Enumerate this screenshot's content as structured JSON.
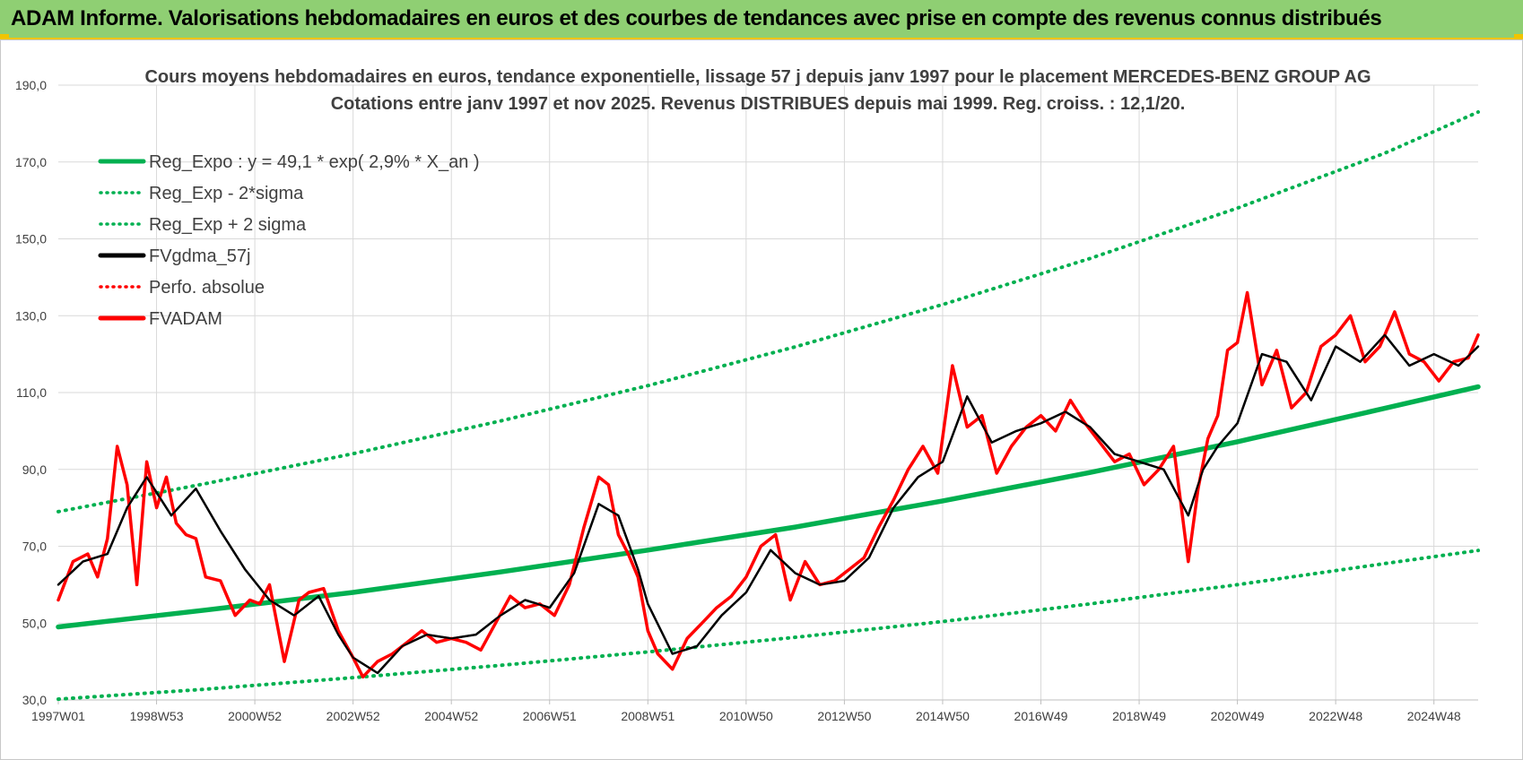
{
  "banner": {
    "title": "ADAM Informe. Valorisations hebdomadaires en euros et des courbes de tendances avec prise en compte des revenus connus distribués",
    "bg_color": "#8fcf73"
  },
  "chart_data": {
    "type": "line",
    "title": "Cours moyens hebdomadaires en euros, tendance exponentielle, lissage 57 j depuis janv 1997 pour le placement MERCEDES-BENZ GROUP AG",
    "subtitle": "Cotations entre janv 1997 et nov 2025. Revenus DISTRIBUES depuis mai 1999. Reg. croiss. : 12,1/20.",
    "xlabel": "",
    "ylabel": "",
    "xlim": [
      1997.0,
      2025.9
    ],
    "ylim": [
      30,
      190
    ],
    "y_ticks": [
      "30,0",
      "50,0",
      "70,0",
      "90,0",
      "110,0",
      "130,0",
      "150,0",
      "170,0",
      "190,0"
    ],
    "x_ticks": [
      {
        "label": "1997W01",
        "x": 1997.0
      },
      {
        "label": "1998W53",
        "x": 1999.0
      },
      {
        "label": "2000W52",
        "x": 2001.0
      },
      {
        "label": "2002W52",
        "x": 2003.0
      },
      {
        "label": "2004W52",
        "x": 2005.0
      },
      {
        "label": "2006W51",
        "x": 2007.0
      },
      {
        "label": "2008W51",
        "x": 2009.0
      },
      {
        "label": "2010W50",
        "x": 2011.0
      },
      {
        "label": "2012W50",
        "x": 2013.0
      },
      {
        "label": "2014W50",
        "x": 2015.0
      },
      {
        "label": "2016W49",
        "x": 2017.0
      },
      {
        "label": "2018W49",
        "x": 2019.0
      },
      {
        "label": "2020W49",
        "x": 2021.0
      },
      {
        "label": "2022W48",
        "x": 2023.0
      },
      {
        "label": "2024W48",
        "x": 2025.0
      }
    ],
    "grid": true,
    "legend_position": "top-left",
    "series": [
      {
        "name": "Reg_Expo : y = 49,1 * exp( 2,9% *  X_an )",
        "color": "#00b050",
        "style": "solid",
        "x": [
          1997,
          2000,
          2003,
          2006,
          2009,
          2012,
          2015,
          2018,
          2021,
          2024,
          2025.9
        ],
        "values": [
          49.0,
          53.4,
          58.0,
          63.3,
          69.0,
          75.0,
          81.8,
          89.2,
          97.2,
          105.9,
          111.5
        ]
      },
      {
        "name": "Reg_Exp - 2*sigma",
        "color": "#00b050",
        "style": "dotted",
        "x": [
          1997,
          2000,
          2003,
          2006,
          2009,
          2012,
          2015,
          2018,
          2021,
          2024,
          2025.9
        ],
        "values": [
          30.2,
          32.8,
          35.8,
          39.0,
          42.5,
          46.3,
          50.4,
          55.0,
          60.0,
          65.5,
          68.9
        ]
      },
      {
        "name": "Reg_Exp + 2 sigma",
        "color": "#00b050",
        "style": "dotted",
        "x": [
          1997,
          2000,
          2003,
          2006,
          2009,
          2012,
          2015,
          2018,
          2021,
          2024,
          2025.9
        ],
        "values": [
          79.0,
          86.3,
          94.1,
          102.6,
          111.8,
          121.9,
          132.9,
          144.9,
          158.0,
          172.3,
          183.0
        ]
      },
      {
        "name": "FVgdma_57j",
        "color": "#000000",
        "style": "solid",
        "x": [
          1997.0,
          1997.5,
          1998.0,
          1998.4,
          1998.8,
          1999.3,
          1999.8,
          2000.3,
          2000.8,
          2001.3,
          2001.8,
          2002.3,
          2002.7,
          2003.0,
          2003.5,
          2004.0,
          2004.5,
          2005.0,
          2005.5,
          2006.0,
          2006.5,
          2007.0,
          2007.5,
          2008.0,
          2008.4,
          2008.8,
          2009.0,
          2009.5,
          2010.0,
          2010.5,
          2011.0,
          2011.5,
          2012.0,
          2012.5,
          2013.0,
          2013.5,
          2014.0,
          2014.5,
          2015.0,
          2015.5,
          2016.0,
          2016.5,
          2017.0,
          2017.5,
          2018.0,
          2018.5,
          2019.0,
          2019.5,
          2020.0,
          2020.3,
          2020.6,
          2021.0,
          2021.5,
          2022.0,
          2022.5,
          2023.0,
          2023.5,
          2024.0,
          2024.5,
          2025.0,
          2025.5,
          2025.9
        ],
        "values": [
          60,
          66,
          68,
          80,
          88,
          78,
          85,
          74,
          64,
          56,
          52,
          57,
          47,
          41,
          37,
          44,
          47,
          46,
          47,
          52,
          56,
          54,
          63,
          81,
          78,
          64,
          55,
          42,
          44,
          52,
          58,
          69,
          63,
          60,
          61,
          67,
          80,
          88,
          92,
          109,
          97,
          100,
          102,
          105,
          101,
          94,
          92,
          90,
          78,
          90,
          96,
          102,
          120,
          118,
          108,
          122,
          118,
          125,
          117,
          120,
          117,
          122
        ]
      },
      {
        "name": "Perfo. absolue",
        "color": "#ff0000",
        "style": "dotted",
        "x": [],
        "values": []
      },
      {
        "name": "FVADAM",
        "color": "#ff0000",
        "style": "solid",
        "x": [
          1997.0,
          1997.3,
          1997.6,
          1997.8,
          1998.0,
          1998.2,
          1998.4,
          1998.6,
          1998.8,
          1999.0,
          1999.2,
          1999.4,
          1999.6,
          1999.8,
          2000.0,
          2000.3,
          2000.6,
          2000.9,
          2001.1,
          2001.3,
          2001.6,
          2001.9,
          2002.1,
          2002.4,
          2002.7,
          2003.0,
          2003.2,
          2003.5,
          2003.8,
          2004.1,
          2004.4,
          2004.7,
          2005.0,
          2005.3,
          2005.6,
          2005.9,
          2006.2,
          2006.5,
          2006.8,
          2007.1,
          2007.4,
          2007.7,
          2008.0,
          2008.2,
          2008.4,
          2008.6,
          2008.8,
          2009.0,
          2009.2,
          2009.5,
          2009.8,
          2010.1,
          2010.4,
          2010.7,
          2011.0,
          2011.3,
          2011.6,
          2011.9,
          2012.2,
          2012.5,
          2012.8,
          2013.1,
          2013.4,
          2013.7,
          2014.0,
          2014.3,
          2014.6,
          2014.9,
          2015.2,
          2015.5,
          2015.8,
          2016.1,
          2016.4,
          2016.7,
          2017.0,
          2017.3,
          2017.6,
          2017.9,
          2018.2,
          2018.5,
          2018.8,
          2019.1,
          2019.4,
          2019.7,
          2020.0,
          2020.2,
          2020.4,
          2020.6,
          2020.8,
          2021.0,
          2021.2,
          2021.5,
          2021.8,
          2022.1,
          2022.4,
          2022.7,
          2023.0,
          2023.3,
          2023.6,
          2023.9,
          2024.2,
          2024.5,
          2024.8,
          2025.1,
          2025.4,
          2025.7,
          2025.9
        ],
        "values": [
          56,
          66,
          68,
          62,
          72,
          96,
          86,
          60,
          92,
          80,
          88,
          76,
          73,
          72,
          62,
          61,
          52,
          56,
          55,
          60,
          40,
          56,
          58,
          59,
          48,
          41,
          36,
          40,
          42,
          45,
          48,
          45,
          46,
          45,
          43,
          50,
          57,
          54,
          55,
          52,
          60,
          75,
          88,
          86,
          73,
          68,
          62,
          48,
          42,
          38,
          46,
          50,
          54,
          57,
          62,
          70,
          73,
          56,
          66,
          60,
          61,
          64,
          67,
          75,
          82,
          90,
          96,
          89,
          117,
          101,
          104,
          89,
          96,
          101,
          104,
          100,
          108,
          102,
          97,
          92,
          94,
          86,
          90,
          96,
          66,
          85,
          98,
          104,
          121,
          123,
          136,
          112,
          121,
          106,
          110,
          122,
          125,
          130,
          118,
          122,
          131,
          120,
          118,
          113,
          118,
          119,
          125
        ]
      }
    ]
  }
}
